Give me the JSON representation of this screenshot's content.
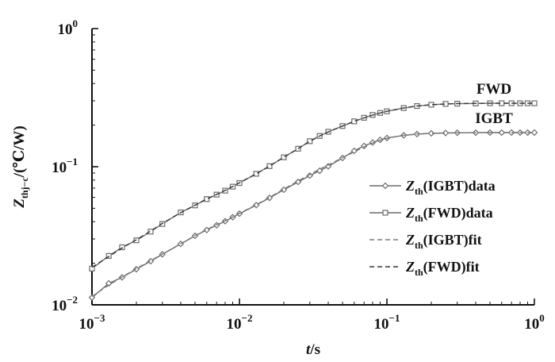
{
  "chart_data": {
    "type": "line",
    "x_scale": "log",
    "y_scale": "log",
    "xlim": [
      0.001,
      1
    ],
    "ylim": [
      0.01,
      1
    ],
    "x_ticks": [
      {
        "value": 0.001,
        "base": "10",
        "exp": "−3"
      },
      {
        "value": 0.01,
        "base": "10",
        "exp": "−2"
      },
      {
        "value": 0.1,
        "base": "10",
        "exp": "−1"
      },
      {
        "value": 1,
        "base": "10",
        "exp": "0"
      }
    ],
    "y_ticks": [
      {
        "value": 0.01,
        "base": "10",
        "exp": "−2"
      },
      {
        "value": 0.1,
        "base": "10",
        "exp": "−1"
      },
      {
        "value": 1,
        "base": "10",
        "exp": "0"
      }
    ],
    "xlabel": {
      "var": "t",
      "unit": "/s"
    },
    "ylabel": {
      "var": "Z",
      "sub": "thj−c",
      "unit": "/(℃/W)"
    },
    "grid": false,
    "legend_position": "center-right",
    "curve_labels": [
      {
        "text": "FWD",
        "series": "fwd_data"
      },
      {
        "text": "IGBT",
        "series": "igbt_data"
      }
    ],
    "series": [
      {
        "id": "igbt_data",
        "legend": {
          "var": "Z",
          "sub": "th",
          "text": "(IGBT)data"
        },
        "color": "#6b6b6b",
        "style": "solid",
        "marker": "diamond",
        "x": [
          0.001,
          0.0013,
          0.0016,
          0.002,
          0.0025,
          0.003,
          0.004,
          0.005,
          0.006,
          0.007,
          0.008,
          0.009,
          0.01,
          0.013,
          0.016,
          0.02,
          0.025,
          0.03,
          0.035,
          0.04,
          0.05,
          0.06,
          0.07,
          0.08,
          0.09,
          0.1,
          0.13,
          0.16,
          0.2,
          0.25,
          0.3,
          0.4,
          0.5,
          0.6,
          0.7,
          0.8,
          0.9,
          1.0
        ],
        "y": [
          0.0113,
          0.0143,
          0.0158,
          0.0181,
          0.0207,
          0.0232,
          0.0276,
          0.0316,
          0.0348,
          0.0377,
          0.0403,
          0.0431,
          0.0457,
          0.0527,
          0.0595,
          0.0681,
          0.0776,
          0.0862,
          0.0935,
          0.1006,
          0.1156,
          0.1303,
          0.1413,
          0.1496,
          0.1565,
          0.1614,
          0.1687,
          0.1722,
          0.1744,
          0.1755,
          0.176,
          0.1764,
          0.1766,
          0.1767,
          0.1767,
          0.1767,
          0.1767,
          0.1767
        ]
      },
      {
        "id": "fwd_data",
        "legend": {
          "var": "Z",
          "sub": "th",
          "text": "(FWD)data"
        },
        "color": "#6b6b6b",
        "style": "solid",
        "marker": "square",
        "x": [
          0.001,
          0.0013,
          0.0016,
          0.002,
          0.0025,
          0.003,
          0.004,
          0.005,
          0.006,
          0.007,
          0.008,
          0.009,
          0.01,
          0.013,
          0.016,
          0.02,
          0.025,
          0.03,
          0.035,
          0.04,
          0.05,
          0.06,
          0.07,
          0.08,
          0.09,
          0.1,
          0.13,
          0.16,
          0.2,
          0.25,
          0.3,
          0.4,
          0.5,
          0.6,
          0.7,
          0.8,
          0.9,
          1.0
        ],
        "y": [
          0.0183,
          0.0226,
          0.0261,
          0.0293,
          0.0339,
          0.0385,
          0.0467,
          0.0525,
          0.0583,
          0.0628,
          0.0671,
          0.0717,
          0.0762,
          0.0889,
          0.101,
          0.117,
          0.135,
          0.153,
          0.167,
          0.179,
          0.197,
          0.213,
          0.226,
          0.237,
          0.245,
          0.252,
          0.266,
          0.275,
          0.281,
          0.285,
          0.286,
          0.287,
          0.288,
          0.288,
          0.288,
          0.288,
          0.288,
          0.288
        ]
      },
      {
        "id": "igbt_fit",
        "legend": {
          "var": "Z",
          "sub": "th",
          "text": "(IGBT)fit"
        },
        "color": "#7a7a7a",
        "style": "dashed",
        "marker": "none",
        "x": [
          0.001,
          0.0013,
          0.0016,
          0.002,
          0.0025,
          0.003,
          0.004,
          0.005,
          0.006,
          0.007,
          0.008,
          0.009,
          0.01,
          0.013,
          0.016,
          0.02,
          0.025,
          0.03,
          0.035,
          0.04,
          0.05,
          0.06,
          0.07,
          0.08,
          0.09,
          0.1,
          0.13,
          0.16,
          0.2,
          0.25,
          0.3,
          0.4,
          0.5,
          0.6,
          0.7,
          0.8,
          0.9,
          1.0
        ],
        "y": [
          0.0115,
          0.0139,
          0.0159,
          0.0183,
          0.0209,
          0.0233,
          0.0277,
          0.0317,
          0.0351,
          0.038,
          0.0406,
          0.0432,
          0.0459,
          0.0531,
          0.06,
          0.0689,
          0.0788,
          0.0879,
          0.0959,
          0.1031,
          0.1159,
          0.128,
          0.1392,
          0.1484,
          0.1554,
          0.1606,
          0.1689,
          0.1724,
          0.1745,
          0.1756,
          0.176,
          0.1764,
          0.1766,
          0.1767,
          0.1767,
          0.1767,
          0.1767,
          0.1767
        ]
      },
      {
        "id": "fwd_fit",
        "legend": {
          "var": "Z",
          "sub": "th",
          "text": "(FWD)fit"
        },
        "color": "#333333",
        "style": "dashed",
        "marker": "none",
        "x": [
          0.001,
          0.0013,
          0.0016,
          0.002,
          0.0025,
          0.003,
          0.004,
          0.005,
          0.006,
          0.007,
          0.008,
          0.009,
          0.01,
          0.013,
          0.016,
          0.02,
          0.025,
          0.03,
          0.035,
          0.04,
          0.05,
          0.06,
          0.07,
          0.08,
          0.09,
          0.1,
          0.13,
          0.16,
          0.2,
          0.25,
          0.3,
          0.4,
          0.5,
          0.6,
          0.7,
          0.8,
          0.9,
          1.0
        ],
        "y": [
          0.0187,
          0.0224,
          0.0258,
          0.0296,
          0.0342,
          0.0388,
          0.0465,
          0.0526,
          0.0584,
          0.063,
          0.0674,
          0.0719,
          0.0765,
          0.0888,
          0.1011,
          0.1172,
          0.1353,
          0.1527,
          0.1668,
          0.1785,
          0.1968,
          0.2131,
          0.2258,
          0.2362,
          0.2449,
          0.2517,
          0.2662,
          0.2752,
          0.2812,
          0.2846,
          0.2862,
          0.2874,
          0.2878,
          0.288,
          0.288,
          0.288,
          0.288,
          0.288
        ]
      }
    ]
  }
}
